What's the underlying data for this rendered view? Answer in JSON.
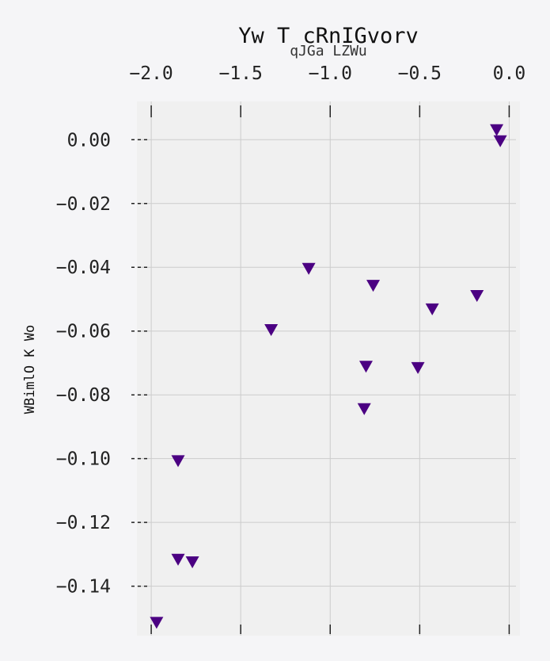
{
  "chart_data": {
    "type": "scatter",
    "title": "Yw T cRnIGvorv",
    "subtitle": "qJGa LZWu",
    "xlabel": "",
    "ylabel": "WBimlO K Wo",
    "x_axis_position": "top",
    "y_axis_inverted": true,
    "xlim": [
      -2.08,
      0.06
    ],
    "ylim": [
      0.012,
      -0.1555
    ],
    "xticks": [
      -2.0,
      -1.5,
      -1.0,
      -0.5,
      0.0
    ],
    "xtick_labels": [
      "−2.0",
      "−1.5",
      "−1.0",
      "−0.5",
      "0.0"
    ],
    "yticks": [
      0.0,
      -0.02,
      -0.04,
      -0.06,
      -0.08,
      -0.1,
      -0.12,
      -0.14
    ],
    "ytick_labels": [
      "0.00",
      "−0.02",
      "−0.04",
      "−0.06",
      "−0.08",
      "−0.10",
      "−0.12",
      "−0.14"
    ],
    "grid": true,
    "marker": "triangle-down",
    "marker_color": "#4b0082",
    "background_color": "#f0f0f0",
    "grid_color": "#cccccc",
    "series": [
      {
        "x": [
          -0.07,
          -0.05,
          -1.12,
          -0.76,
          -0.43,
          -0.18,
          -1.33,
          -0.8,
          -0.51,
          -0.81,
          -1.85,
          -1.85,
          -1.77,
          -1.97
        ],
        "y": [
          0.003,
          -0.0005,
          -0.0405,
          -0.0458,
          -0.0532,
          -0.049,
          -0.0597,
          -0.0712,
          -0.0716,
          -0.0845,
          -0.1008,
          -0.1317,
          -0.1325,
          -0.1515
        ]
      }
    ]
  }
}
